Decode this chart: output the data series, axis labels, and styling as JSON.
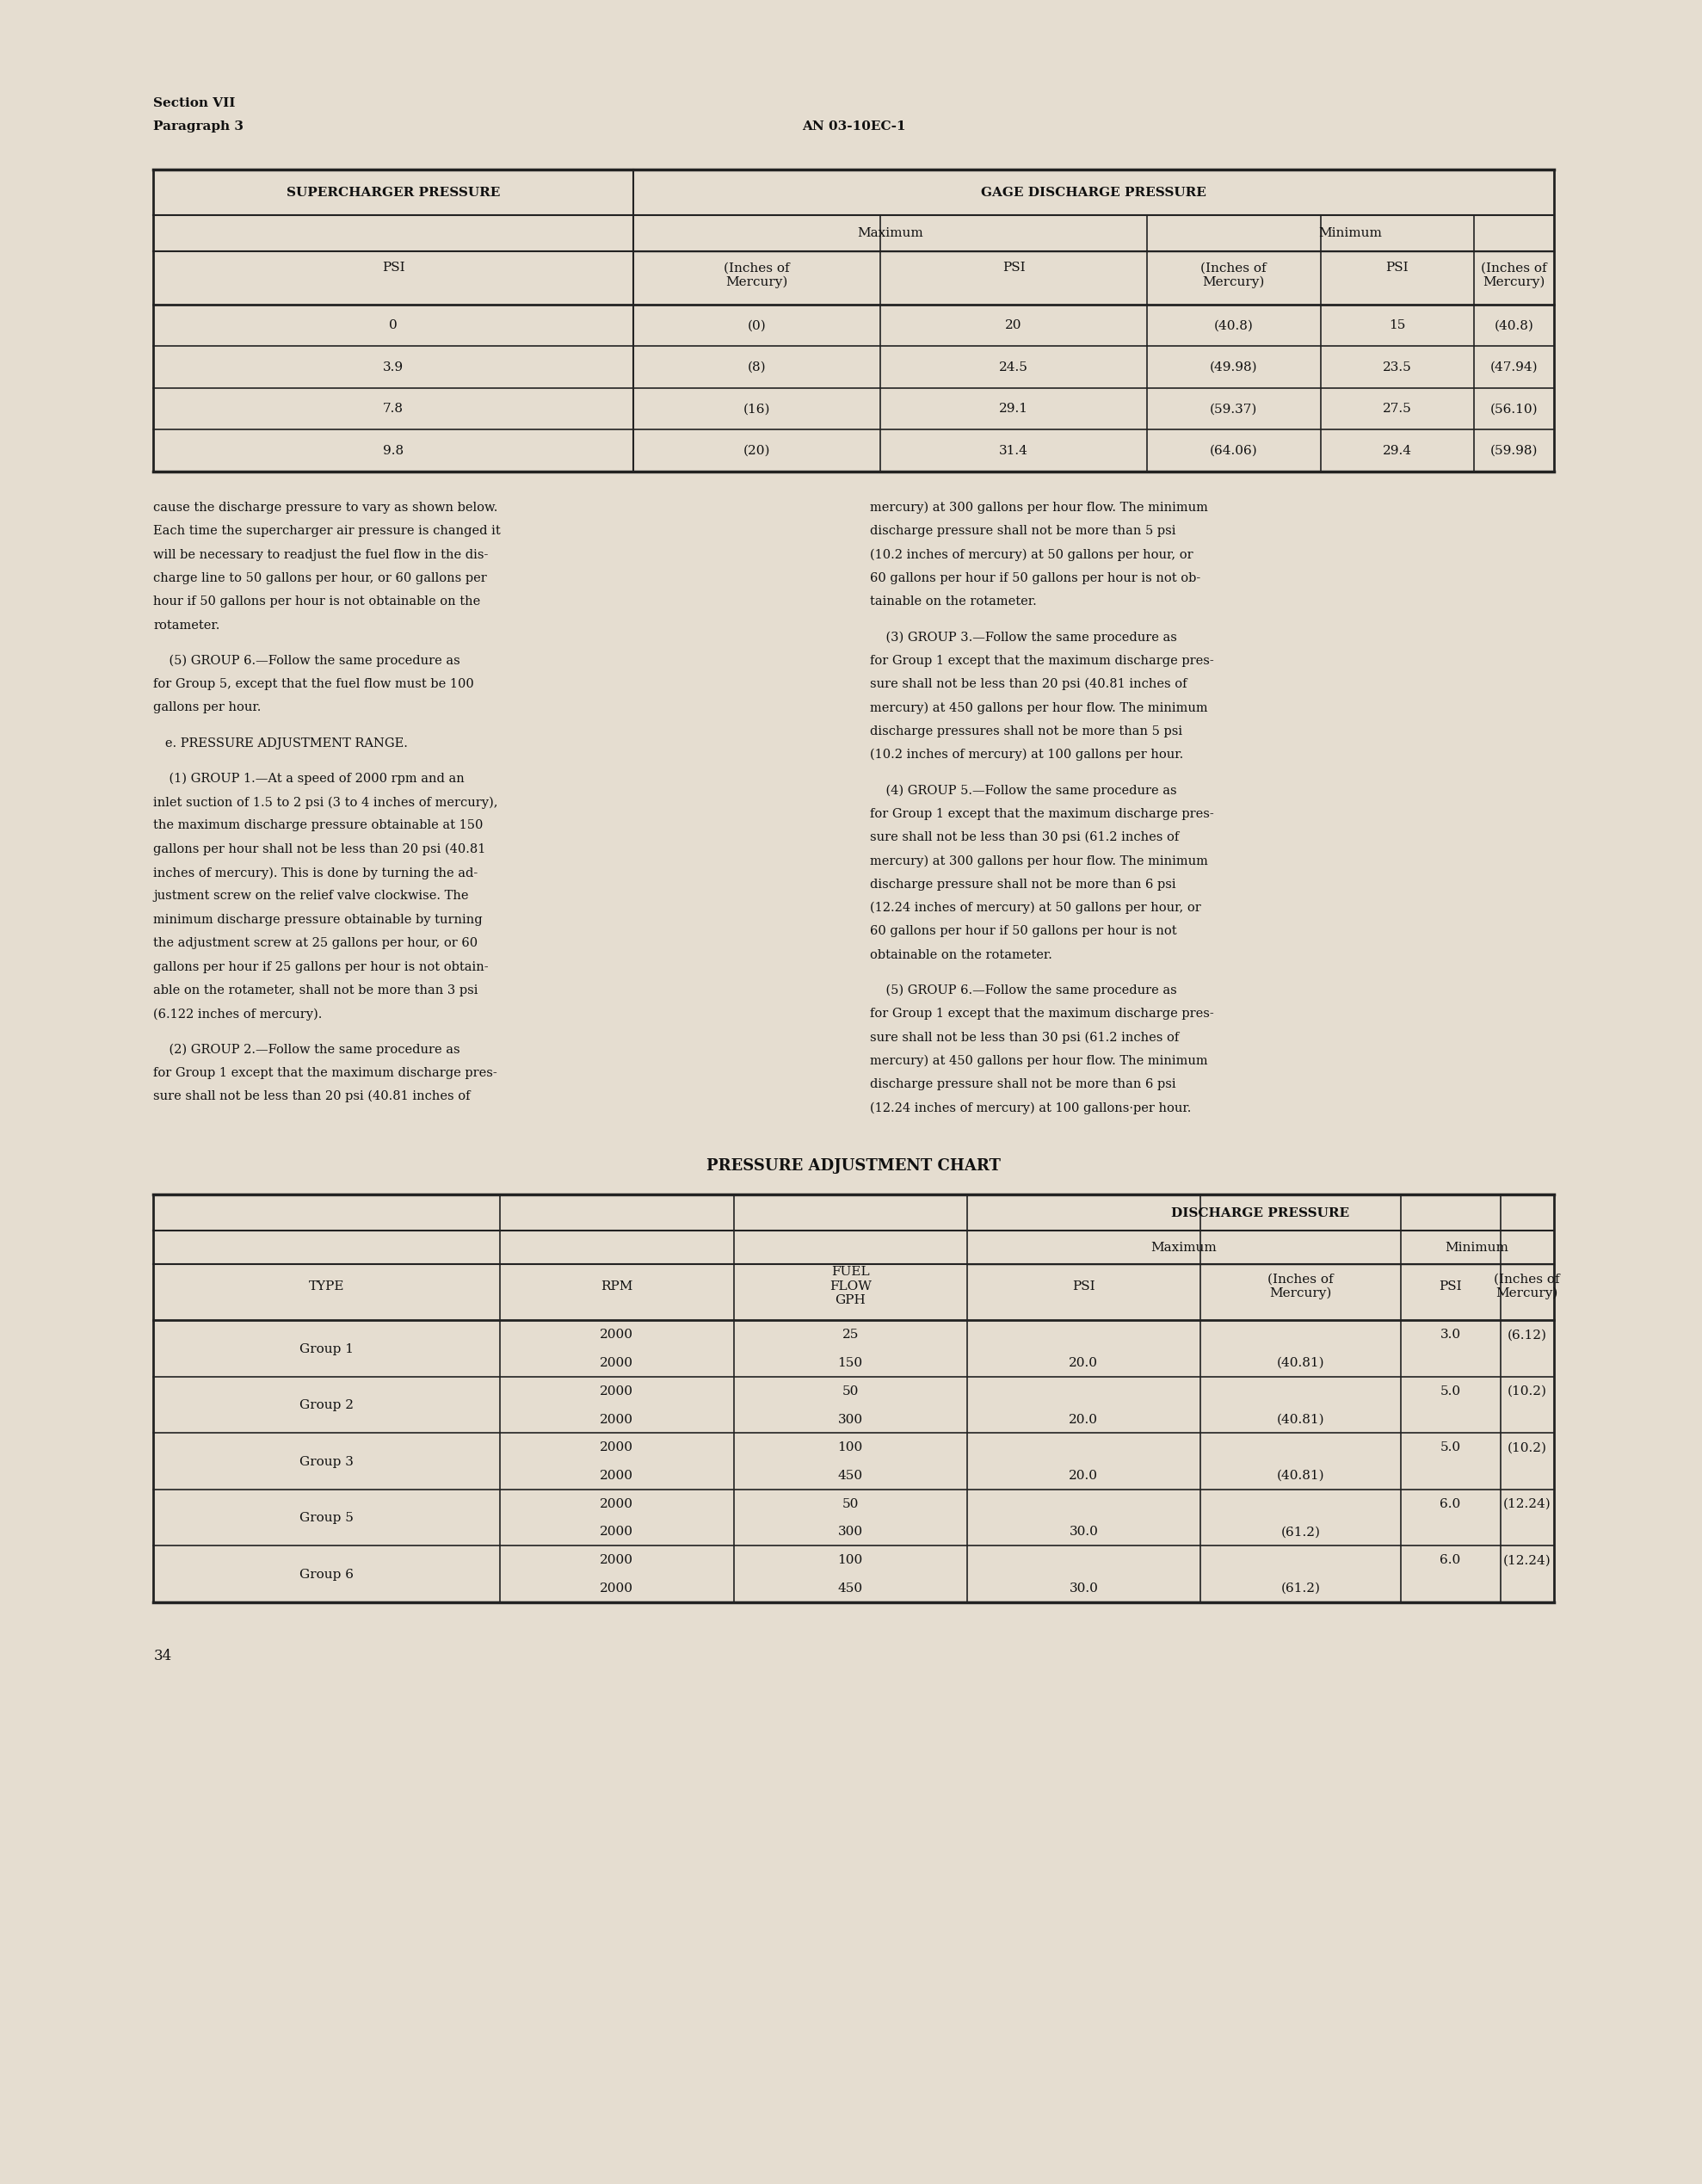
{
  "bg_color": "#e5ddd0",
  "text_color": "#111111",
  "header_section": "Section VII",
  "header_paragraph": "Paragraph 3",
  "header_docnum": "AN 03-10EC-1",
  "t1_title_left": "SUPERCHARGER PRESSURE",
  "t1_title_right": "GAGE DISCHARGE PRESSURE",
  "t1_sub_max": "Maximum",
  "t1_sub_min": "Minimum",
  "t1_col_headers": [
    "PSI",
    "(Inches of\nMercury)",
    "PSI",
    "(Inches of\nMercury)",
    "PSI",
    "(Inches of\nMercury)"
  ],
  "t1_data": [
    [
      "0",
      "(0)",
      "20",
      "(40.8)",
      "15",
      "(40.8)"
    ],
    [
      "3.9",
      "(8)",
      "24.5",
      "(49.98)",
      "23.5",
      "(47.94)"
    ],
    [
      "7.8",
      "(16)",
      "29.1",
      "(59.37)",
      "27.5",
      "(56.10)"
    ],
    [
      "9.8",
      "(20)",
      "31.4",
      "(64.06)",
      "29.4",
      "(59.98)"
    ]
  ],
  "body_left": [
    [
      "normal",
      "cause the discharge pressure to vary as shown below."
    ],
    [
      "normal",
      "Each time the supercharger air pressure is changed it"
    ],
    [
      "normal",
      "will be necessary to readjust the fuel flow in the dis-"
    ],
    [
      "normal",
      "charge line to 50 gallons per hour, or 60 gallons per"
    ],
    [
      "normal",
      "hour if 50 gallons per hour is not obtainable on the"
    ],
    [
      "normal",
      "rotameter."
    ],
    [
      "gap",
      ""
    ],
    [
      "normal",
      "    (5) GROUP 6.—Follow the same procedure as"
    ],
    [
      "normal",
      "for Group 5, except that the fuel flow must be 100"
    ],
    [
      "normal",
      "gallons per hour."
    ],
    [
      "gap",
      ""
    ],
    [
      "normal",
      "   e. PRESSURE ADJUSTMENT RANGE."
    ],
    [
      "gap",
      ""
    ],
    [
      "normal",
      "    (1) GROUP 1.—At a speed of 2000 rpm and an"
    ],
    [
      "normal",
      "inlet suction of 1.5 to 2 psi (3 to 4 inches of mercury),"
    ],
    [
      "normal",
      "the maximum discharge pressure obtainable at 150"
    ],
    [
      "normal",
      "gallons per hour shall not be less than 20 psi (40.81"
    ],
    [
      "normal",
      "inches of mercury). This is done by turning the ad-"
    ],
    [
      "normal",
      "justment screw on the relief valve clockwise. The"
    ],
    [
      "normal",
      "minimum discharge pressure obtainable by turning"
    ],
    [
      "normal",
      "the adjustment screw at 25 gallons per hour, or 60"
    ],
    [
      "normal",
      "gallons per hour if 25 gallons per hour is not obtain-"
    ],
    [
      "normal",
      "able on the rotameter, shall not be more than 3 psi"
    ],
    [
      "normal",
      "(6.122 inches of mercury)."
    ],
    [
      "gap",
      ""
    ],
    [
      "normal",
      "    (2) GROUP 2.—Follow the same procedure as"
    ],
    [
      "normal",
      "for Group 1 except that the maximum discharge pres-"
    ],
    [
      "normal",
      "sure shall not be less than 20 psi (40.81 inches of"
    ]
  ],
  "body_right": [
    [
      "normal",
      "mercury) at 300 gallons per hour flow. The minimum"
    ],
    [
      "normal",
      "discharge pressure shall not be more than 5 psi"
    ],
    [
      "normal",
      "(10.2 inches of mercury) at 50 gallons per hour, or"
    ],
    [
      "normal",
      "60 gallons per hour if 50 gallons per hour is not ob-"
    ],
    [
      "normal",
      "tainable on the rotameter."
    ],
    [
      "gap",
      ""
    ],
    [
      "normal",
      "    (3) GROUP 3.—Follow the same procedure as"
    ],
    [
      "normal",
      "for Group 1 except that the maximum discharge pres-"
    ],
    [
      "normal",
      "sure shall not be less than 20 psi (40.81 inches of"
    ],
    [
      "normal",
      "mercury) at 450 gallons per hour flow. The minimum"
    ],
    [
      "normal",
      "discharge pressures shall not be more than 5 psi"
    ],
    [
      "normal",
      "(10.2 inches of mercury) at 100 gallons per hour."
    ],
    [
      "gap",
      ""
    ],
    [
      "normal",
      "    (4) GROUP 5.—Follow the same procedure as"
    ],
    [
      "normal",
      "for Group 1 except that the maximum discharge pres-"
    ],
    [
      "normal",
      "sure shall not be less than 30 psi (61.2 inches of"
    ],
    [
      "normal",
      "mercury) at 300 gallons per hour flow. The minimum"
    ],
    [
      "normal",
      "discharge pressure shall not be more than 6 psi"
    ],
    [
      "normal",
      "(12.24 inches of mercury) at 50 gallons per hour, or"
    ],
    [
      "normal",
      "60 gallons per hour if 50 gallons per hour is not"
    ],
    [
      "normal",
      "obtainable on the rotameter."
    ],
    [
      "gap",
      ""
    ],
    [
      "normal",
      "    (5) GROUP 6.—Follow the same procedure as"
    ],
    [
      "normal",
      "for Group 1 except that the maximum discharge pres-"
    ],
    [
      "normal",
      "sure shall not be less than 30 psi (61.2 inches of"
    ],
    [
      "normal",
      "mercury) at 450 gallons per hour flow. The minimum"
    ],
    [
      "normal",
      "discharge pressure shall not be more than 6 psi"
    ],
    [
      "normal",
      "(12.24 inches of mercury) at 100 gallons·per hour."
    ]
  ],
  "chart2_title": "PRESSURE ADJUSTMENT CHART",
  "t2_data": [
    [
      "Group 1",
      "2000",
      "25",
      "",
      "",
      "3.0",
      "(6.12)"
    ],
    [
      "Group 1",
      "2000",
      "150",
      "20.0",
      "(40.81)",
      "",
      ""
    ],
    [
      "Group 2",
      "2000",
      "50",
      "",
      "",
      "5.0",
      "(10.2)"
    ],
    [
      "Group 2",
      "2000",
      "300",
      "20.0",
      "(40.81)",
      "",
      ""
    ],
    [
      "Group 3",
      "2000",
      "100",
      "",
      "",
      "5.0",
      "(10.2)"
    ],
    [
      "Group 3",
      "2000",
      "450",
      "20.0",
      "(40.81)",
      "",
      ""
    ],
    [
      "Group 5",
      "2000",
      "50",
      "",
      "",
      "6.0",
      "(12.24)"
    ],
    [
      "Group 5",
      "2000",
      "300",
      "30.0",
      "(61.2)",
      "",
      ""
    ],
    [
      "Group 6",
      "2000",
      "100",
      "",
      "",
      "6.0",
      "(12.24)"
    ],
    [
      "Group 6",
      "2000",
      "450",
      "30.0",
      "(61.2)",
      "",
      ""
    ]
  ],
  "page_number": "34"
}
